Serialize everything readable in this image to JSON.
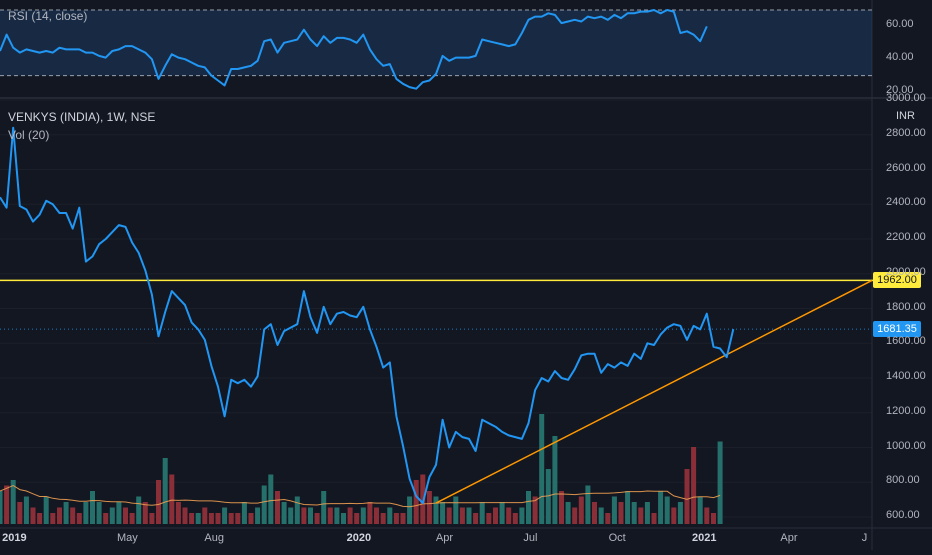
{
  "colors": {
    "background": "#131722",
    "price_line": "#2196f3",
    "rsi_line": "#2196f3",
    "rsi_band": "#1e3a5f",
    "level_line": "#ffeb3b",
    "trendline": "#ff9800",
    "vol_up": "#26706c",
    "vol_down": "#8a2f38",
    "vol_ma": "#f0a050",
    "text": "#b2b5be",
    "grid": "#2a2e39"
  },
  "legend": {
    "symbol": "VENKYS (INDIA), 1W, NSE",
    "volume": "Vol (20)",
    "rsi": "RSI (14, close)"
  },
  "price_axis": {
    "currency": "INR",
    "ticks": [
      "3000.00",
      "2800.00",
      "2600.00",
      "2400.00",
      "2200.00",
      "2000.00",
      "1800.00",
      "1600.00",
      "1400.00",
      "1200.00",
      "1000.00",
      "800.00",
      "600.00"
    ]
  },
  "rsi_axis": {
    "ticks": [
      "60.00",
      "40.00",
      "20.00"
    ]
  },
  "time_axis": {
    "ticks": [
      "2019",
      "May",
      "Aug",
      "2020",
      "Apr",
      "Jul",
      "Oct",
      "2021",
      "Apr",
      "J"
    ]
  },
  "badges": {
    "level": "1962.00",
    "last_price": "1681.35"
  },
  "chart_data": [
    {
      "type": "line",
      "title": "VENKYS (INDIA), 1W, NSE",
      "ylabel": "INR",
      "ylim": [
        560,
        3000
      ],
      "x_range": [
        "2018-12-17",
        "2021-06-28"
      ],
      "horizontal_level": 1962.0,
      "last_price": 1681.35,
      "trendline": {
        "from": [
          "2020-03-23",
          680
        ],
        "to": [
          "2021-06-28",
          1962
        ]
      },
      "series": [
        {
          "points": [
            [
              "2018-12-17",
              2440
            ],
            [
              "2018-12-24",
              2380
            ],
            [
              "2018-12-31",
              2840
            ],
            [
              "2019-01-07",
              2390
            ],
            [
              "2019-01-14",
              2370
            ],
            [
              "2019-01-21",
              2300
            ],
            [
              "2019-01-28",
              2340
            ],
            [
              "2019-02-04",
              2420
            ],
            [
              "2019-02-11",
              2400
            ],
            [
              "2019-02-18",
              2350
            ],
            [
              "2019-02-25",
              2350
            ],
            [
              "2019-03-04",
              2260
            ],
            [
              "2019-03-11",
              2380
            ],
            [
              "2019-03-18",
              2070
            ],
            [
              "2019-03-25",
              2100
            ],
            [
              "2019-04-01",
              2170
            ],
            [
              "2019-04-08",
              2200
            ],
            [
              "2019-04-15",
              2240
            ],
            [
              "2019-04-22",
              2280
            ],
            [
              "2019-04-29",
              2270
            ],
            [
              "2019-05-06",
              2180
            ],
            [
              "2019-05-13",
              2120
            ],
            [
              "2019-05-20",
              2020
            ],
            [
              "2019-05-27",
              1880
            ],
            [
              "2019-06-03",
              1640
            ],
            [
              "2019-06-10",
              1780
            ],
            [
              "2019-06-17",
              1900
            ],
            [
              "2019-06-24",
              1860
            ],
            [
              "2019-07-01",
              1820
            ],
            [
              "2019-07-08",
              1720
            ],
            [
              "2019-07-15",
              1680
            ],
            [
              "2019-07-22",
              1620
            ],
            [
              "2019-07-29",
              1470
            ],
            [
              "2019-08-05",
              1350
            ],
            [
              "2019-08-12",
              1180
            ],
            [
              "2019-08-19",
              1390
            ],
            [
              "2019-08-26",
              1370
            ],
            [
              "2019-09-02",
              1390
            ],
            [
              "2019-09-09",
              1350
            ],
            [
              "2019-09-16",
              1410
            ],
            [
              "2019-09-23",
              1680
            ],
            [
              "2019-09-30",
              1710
            ],
            [
              "2019-10-07",
              1590
            ],
            [
              "2019-10-14",
              1670
            ],
            [
              "2019-10-21",
              1690
            ],
            [
              "2019-10-28",
              1710
            ],
            [
              "2019-11-04",
              1900
            ],
            [
              "2019-11-11",
              1750
            ],
            [
              "2019-11-18",
              1660
            ],
            [
              "2019-11-25",
              1810
            ],
            [
              "2019-12-02",
              1710
            ],
            [
              "2019-12-09",
              1770
            ],
            [
              "2019-12-16",
              1780
            ],
            [
              "2019-12-23",
              1760
            ],
            [
              "2019-12-30",
              1750
            ],
            [
              "2020-01-06",
              1810
            ],
            [
              "2020-01-13",
              1680
            ],
            [
              "2020-01-20",
              1580
            ],
            [
              "2020-01-27",
              1460
            ],
            [
              "2020-02-03",
              1490
            ],
            [
              "2020-02-10",
              1180
            ],
            [
              "2020-02-17",
              1010
            ],
            [
              "2020-02-24",
              820
            ],
            [
              "2020-03-02",
              720
            ],
            [
              "2020-03-09",
              680
            ],
            [
              "2020-03-16",
              830
            ],
            [
              "2020-03-23",
              900
            ],
            [
              "2020-03-30",
              1160
            ],
            [
              "2020-04-06",
              1000
            ],
            [
              "2020-04-13",
              1090
            ],
            [
              "2020-04-20",
              1060
            ],
            [
              "2020-04-27",
              1050
            ],
            [
              "2020-05-04",
              980
            ],
            [
              "2020-05-11",
              1160
            ],
            [
              "2020-05-18",
              1140
            ],
            [
              "2020-05-25",
              1120
            ],
            [
              "2020-06-01",
              1090
            ],
            [
              "2020-06-08",
              1070
            ],
            [
              "2020-06-15",
              1060
            ],
            [
              "2020-06-22",
              1050
            ],
            [
              "2020-06-29",
              1140
            ],
            [
              "2020-07-06",
              1330
            ],
            [
              "2020-07-13",
              1400
            ],
            [
              "2020-07-20",
              1380
            ],
            [
              "2020-07-27",
              1440
            ],
            [
              "2020-08-03",
              1400
            ],
            [
              "2020-08-10",
              1390
            ],
            [
              "2020-08-17",
              1450
            ],
            [
              "2020-08-24",
              1530
            ],
            [
              "2020-08-31",
              1540
            ],
            [
              "2020-09-07",
              1540
            ],
            [
              "2020-09-14",
              1430
            ],
            [
              "2020-09-21",
              1480
            ],
            [
              "2020-09-28",
              1460
            ],
            [
              "2020-10-05",
              1490
            ],
            [
              "2020-10-12",
              1470
            ],
            [
              "2020-10-19",
              1540
            ],
            [
              "2020-10-26",
              1510
            ],
            [
              "2020-11-02",
              1600
            ],
            [
              "2020-11-09",
              1590
            ],
            [
              "2020-11-16",
              1650
            ],
            [
              "2020-11-23",
              1690
            ],
            [
              "2020-11-30",
              1710
            ],
            [
              "2020-12-07",
              1700
            ],
            [
              "2020-12-14",
              1620
            ],
            [
              "2020-12-21",
              1700
            ],
            [
              "2020-12-28",
              1680
            ],
            [
              "2021-01-04",
              1770
            ],
            [
              "2021-01-11",
              1580
            ],
            [
              "2021-01-18",
              1570
            ],
            [
              "2021-01-25",
              1520
            ],
            [
              "2021-02-01",
              1681.35
            ]
          ]
        }
      ]
    },
    {
      "type": "bar",
      "title": "Vol (20)",
      "ma_length": 20,
      "dates_from": "2018-12-17",
      "step_days": 7,
      "values": [
        6,
        7,
        8,
        4,
        5,
        3,
        2,
        5,
        2,
        3,
        4,
        3,
        2,
        4,
        6,
        4,
        2,
        3,
        4,
        3,
        2,
        5,
        4,
        2,
        8,
        12,
        9,
        4,
        3,
        2,
        2,
        3,
        2,
        2,
        3,
        2,
        2,
        4,
        2,
        3,
        7,
        9,
        6,
        4,
        3,
        5,
        3,
        3,
        2,
        6,
        3,
        3,
        2,
        3,
        2,
        3,
        4,
        3,
        2,
        3,
        2,
        2,
        5,
        8,
        9,
        6,
        5,
        4,
        3,
        5,
        3,
        3,
        2,
        4,
        2,
        3,
        4,
        3,
        2,
        3,
        6,
        5,
        20,
        10,
        16,
        6,
        4,
        3,
        5,
        7,
        4,
        3,
        2,
        5,
        4,
        6,
        4,
        3,
        4,
        2,
        6,
        5,
        3,
        4,
        10,
        14,
        5,
        3,
        2,
        15
      ],
      "up": [
        1,
        0,
        1,
        0,
        1,
        0,
        0,
        1,
        0,
        0,
        1,
        0,
        0,
        1,
        1,
        1,
        0,
        1,
        1,
        0,
        0,
        1,
        0,
        0,
        0,
        1,
        0,
        0,
        0,
        0,
        1,
        0,
        0,
        0,
        1,
        0,
        0,
        1,
        0,
        1,
        1,
        1,
        0,
        1,
        1,
        1,
        0,
        1,
        0,
        1,
        0,
        1,
        1,
        0,
        0,
        1,
        0,
        0,
        0,
        1,
        0,
        0,
        1,
        0,
        0,
        0,
        1,
        1,
        0,
        1,
        0,
        1,
        0,
        1,
        0,
        0,
        1,
        0,
        0,
        1,
        1,
        0,
        1,
        1,
        1,
        0,
        1,
        0,
        0,
        1,
        0,
        1,
        0,
        1,
        0,
        1,
        1,
        0,
        1,
        0,
        1,
        1,
        0,
        1,
        0,
        0,
        1,
        0,
        0,
        1
      ]
    },
    {
      "type": "line",
      "title": "RSI (14, close)",
      "ylim": [
        20,
        70
      ],
      "band": [
        30,
        70
      ],
      "dates_from": "2018-12-17",
      "step_days": 7,
      "values": [
        45,
        55,
        47,
        44,
        46,
        45,
        44,
        45,
        44,
        47,
        46,
        46,
        46,
        44,
        44,
        42,
        41,
        45,
        46,
        48,
        48,
        46,
        44,
        40,
        28,
        36,
        43,
        41,
        40,
        38,
        36,
        35,
        30,
        27,
        24,
        34,
        34,
        35,
        36,
        39,
        51,
        52,
        44,
        50,
        51,
        52,
        58,
        52,
        48,
        54,
        50,
        53,
        53,
        52,
        50,
        55,
        46,
        40,
        36,
        37,
        28,
        25,
        23,
        22,
        26,
        27,
        31,
        42,
        39,
        41,
        41,
        41,
        42,
        52,
        51,
        50,
        49,
        48,
        49,
        56,
        64,
        66,
        66,
        68,
        67,
        62,
        63,
        64,
        63,
        66,
        65,
        66,
        64,
        67,
        65,
        68,
        68,
        69,
        69,
        70,
        68,
        70,
        69,
        56,
        57,
        55,
        51,
        60
      ]
    }
  ]
}
